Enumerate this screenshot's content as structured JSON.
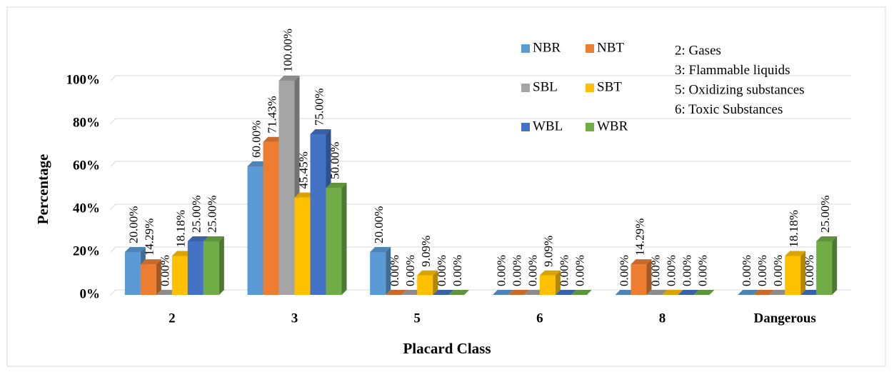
{
  "chart_data": {
    "type": "bar3d",
    "x_label": "Placard Class",
    "y_label": "Percentage",
    "categories": [
      "2",
      "3",
      "5",
      "6",
      "8",
      "Dangerous"
    ],
    "series": [
      {
        "name": "NBR",
        "color": "#5b9bd5",
        "values": [
          20,
          60,
          20,
          0,
          0,
          0
        ],
        "value_labels": [
          "20.00%",
          "60.00%",
          "20.00%",
          "0.00%",
          "0.00%",
          "0.00%"
        ]
      },
      {
        "name": "NBT",
        "color": "#ed7d31",
        "values": [
          14.29,
          71.43,
          0,
          0,
          14.29,
          0
        ],
        "value_labels": [
          "14.29%",
          "71.43%",
          "0.00%",
          "0.00%",
          "14.29%",
          "0.00%"
        ]
      },
      {
        "name": "SBL",
        "color": "#a5a5a5",
        "values": [
          0,
          100,
          0,
          0,
          0,
          0
        ],
        "value_labels": [
          "0.00%",
          "100.00%",
          "0.00%",
          "0.00%",
          "0.00%",
          "0.00%"
        ]
      },
      {
        "name": "SBT",
        "color": "#ffc000",
        "values": [
          18.18,
          45.45,
          9.09,
          9.09,
          0,
          18.18
        ],
        "value_labels": [
          "18.18%",
          "45.45%",
          "9.09%",
          "9.09%",
          "0.00%",
          "18.18%"
        ]
      },
      {
        "name": "WBL",
        "color": "#4472c4",
        "values": [
          25,
          75,
          0,
          0,
          0,
          0
        ],
        "value_labels": [
          "25.00%",
          "75.00%",
          "0.00%",
          "0.00%",
          "0.00%",
          "0.00%"
        ]
      },
      {
        "name": "WBR",
        "color": "#70ad47",
        "values": [
          25,
          50,
          0,
          0,
          0,
          25
        ],
        "value_labels": [
          "25.00%",
          "50.00%",
          "0.00%",
          "0.00%",
          "0.00%",
          "25.00%"
        ]
      }
    ],
    "ylim": [
      0,
      100
    ],
    "yticks": [
      {
        "value": 0,
        "label": "0%"
      },
      {
        "value": 20,
        "label": "20%"
      },
      {
        "value": 40,
        "label": "40%"
      },
      {
        "value": 60,
        "label": "60%"
      },
      {
        "value": 80,
        "label": "80%"
      },
      {
        "value": 100,
        "label": "100%"
      }
    ],
    "grid": true,
    "annotations": [
      "2: Gases",
      "3: Flammable liquids",
      "5: Oxidizing substances",
      "6: Toxic Substances"
    ]
  }
}
